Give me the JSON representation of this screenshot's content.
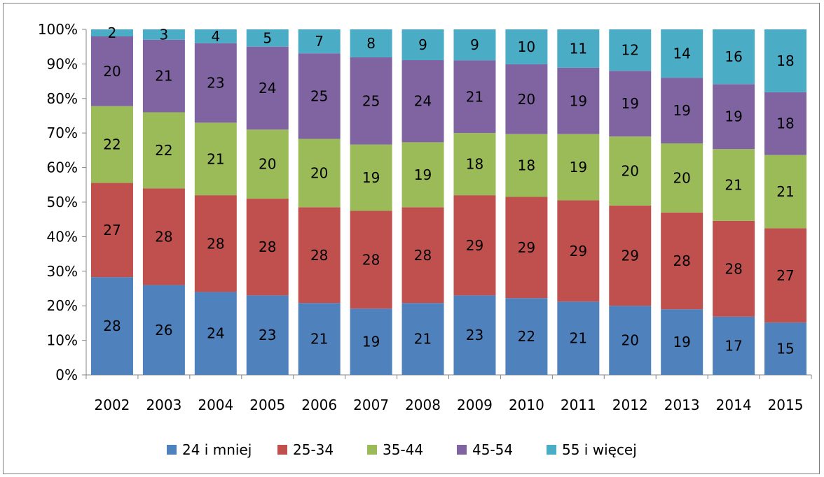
{
  "chart_data": {
    "type": "bar",
    "stacked": true,
    "percent": true,
    "categories": [
      "2002",
      "2003",
      "2004",
      "2005",
      "2006",
      "2007",
      "2008",
      "2009",
      "2010",
      "2011",
      "2012",
      "2013",
      "2014",
      "2015"
    ],
    "y_ticks": [
      "0%",
      "10%",
      "20%",
      "30%",
      "40%",
      "50%",
      "60%",
      "70%",
      "80%",
      "90%",
      "100%"
    ],
    "ylim": [
      0,
      100
    ],
    "grid": false,
    "legend_position": "bottom",
    "series": [
      {
        "name": "24 i mniej",
        "color": "#4f81bd",
        "values": [
          28,
          26,
          24,
          23,
          21,
          19,
          21,
          23,
          22,
          21,
          20,
          19,
          17,
          15
        ]
      },
      {
        "name": "25-34",
        "color": "#c0504d",
        "values": [
          27,
          28,
          28,
          28,
          28,
          28,
          28,
          29,
          29,
          29,
          29,
          28,
          28,
          27
        ]
      },
      {
        "name": "35-44",
        "color": "#9bbb59",
        "values": [
          22,
          22,
          21,
          20,
          20,
          19,
          19,
          18,
          18,
          19,
          20,
          20,
          21,
          21
        ]
      },
      {
        "name": "45-54",
        "color": "#8064a2",
        "values": [
          20,
          21,
          23,
          24,
          25,
          25,
          24,
          21,
          20,
          19,
          19,
          19,
          19,
          18
        ]
      },
      {
        "name": "55 i więcej",
        "color": "#4bacc6",
        "values": [
          2,
          3,
          4,
          5,
          7,
          8,
          9,
          9,
          10,
          11,
          12,
          14,
          16,
          18
        ]
      }
    ]
  }
}
